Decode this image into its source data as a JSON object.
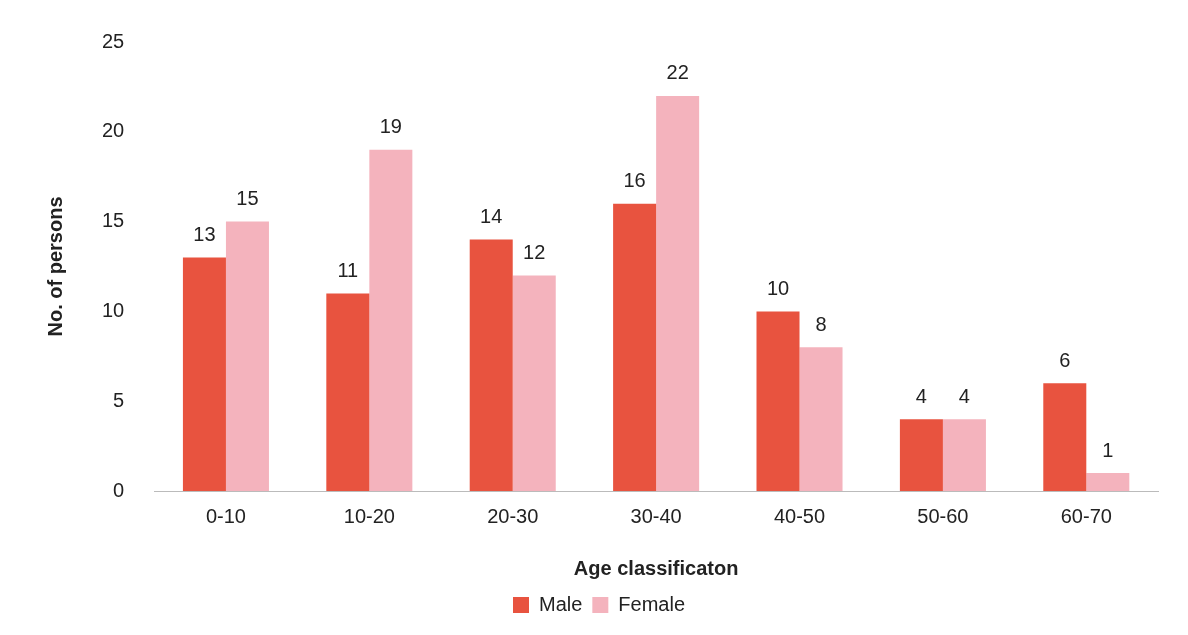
{
  "chart_data": {
    "type": "bar",
    "xlabel": "Age classificaton",
    "ylabel": "No. of persons",
    "categories": [
      "0-10",
      "10-20",
      "20-30",
      "30-40",
      "40-50",
      "50-60",
      "60-70"
    ],
    "series": [
      {
        "name": "Male",
        "color": "#e8533f",
        "values": [
          13,
          11,
          14,
          16,
          10,
          4,
          6
        ]
      },
      {
        "name": "Female",
        "color": "#f4b3bd",
        "values": [
          15,
          19,
          12,
          22,
          8,
          4,
          1
        ]
      }
    ],
    "ylim": [
      0,
      25
    ],
    "yticks": [
      0,
      5,
      10,
      15,
      20,
      25
    ],
    "grid": false,
    "legend": "bottom",
    "data_labels": true
  }
}
